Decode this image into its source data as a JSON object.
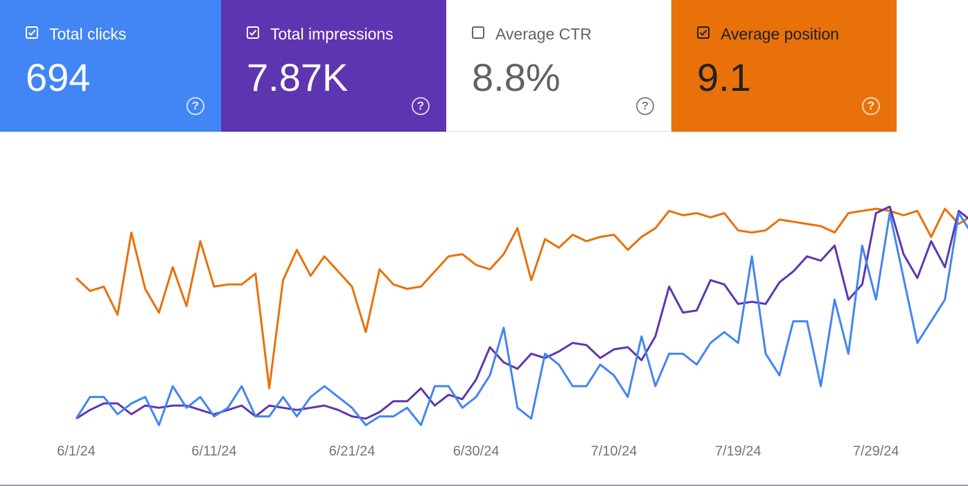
{
  "metrics": [
    {
      "label": "Total clicks",
      "value": "694",
      "checked": true,
      "color": "#4285f4",
      "help": "?"
    },
    {
      "label": "Total impressions",
      "value": "7.87K",
      "checked": true,
      "color": "#5e35b1",
      "help": "?"
    },
    {
      "label": "Average CTR",
      "value": "8.8%",
      "checked": false,
      "color": "#ffffff",
      "help": "?"
    },
    {
      "label": "Average position",
      "value": "9.1",
      "checked": true,
      "color": "#e8710a",
      "help": "?"
    }
  ],
  "chart_data": {
    "type": "line",
    "x_tick_labels": [
      "6/1/24",
      "6/11/24",
      "6/21/24",
      "6/30/24",
      "7/10/24",
      "7/19/24",
      "7/29/24"
    ],
    "x_tick_index": [
      0,
      10,
      20,
      29,
      39,
      48,
      58
    ],
    "ylim": [
      0,
      100
    ],
    "grid": false,
    "legend": "metric cards above chart",
    "series": [
      {
        "name": "Average position",
        "color": "#e8710a",
        "values": [
          67,
          61,
          63,
          50,
          88,
          62,
          51,
          72,
          54,
          84,
          63,
          64,
          64,
          69,
          16,
          66,
          80,
          68,
          77,
          70,
          63,
          42,
          71,
          64,
          62,
          63,
          70,
          77,
          78,
          73,
          71,
          78,
          90,
          66,
          85,
          81,
          87,
          84,
          86,
          87,
          80,
          86,
          90,
          98,
          96,
          97,
          95,
          97,
          89,
          88,
          89,
          94,
          93,
          92,
          91,
          88,
          97,
          98,
          99,
          98,
          96,
          98,
          86,
          99,
          92,
          96
        ]
      },
      {
        "name": "Total impressions",
        "color": "#5e35b1",
        "values": [
          2,
          6,
          9,
          9,
          4,
          8,
          7,
          8,
          8,
          6,
          4,
          6,
          8,
          3,
          8,
          7,
          6,
          7,
          8,
          6,
          3,
          2,
          5,
          10,
          10,
          16,
          8,
          13,
          11,
          20,
          35,
          28,
          25,
          32,
          30,
          33,
          37,
          36,
          30,
          34,
          35,
          29,
          40,
          63,
          51,
          52,
          66,
          64,
          55,
          56,
          55,
          65,
          70,
          77,
          75,
          82,
          57,
          64,
          97,
          100,
          78,
          67,
          84,
          72,
          98,
          93
        ]
      },
      {
        "name": "Total clicks",
        "color": "#4285f4",
        "values": [
          2,
          12,
          12,
          4,
          9,
          12,
          -1,
          17,
          7,
          12,
          3,
          7,
          17,
          3,
          3,
          12,
          3,
          12,
          17,
          12,
          7,
          -1,
          3,
          3,
          7,
          -1,
          17,
          17,
          7,
          12,
          22,
          44,
          7,
          2,
          32,
          27,
          17,
          17,
          27,
          22,
          12,
          40,
          17,
          32,
          32,
          27,
          37,
          42,
          37,
          77,
          32,
          22,
          47,
          47,
          17,
          57,
          32,
          82,
          57,
          97,
          67,
          37,
          47,
          57,
          97,
          87
        ]
      }
    ]
  }
}
